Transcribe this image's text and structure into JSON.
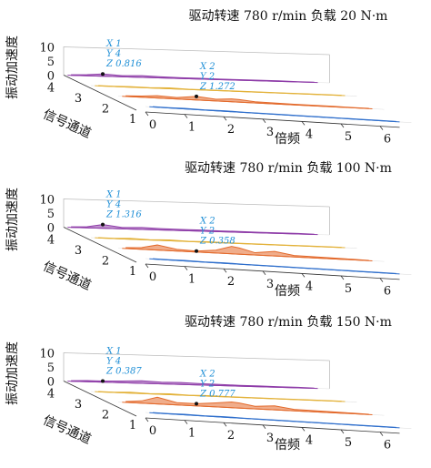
{
  "colors": {
    "channel_1": "#2f6fcc",
    "channel_2": "#e36a2c",
    "channel_3": "#e3b23a",
    "channel_4": "#8e3ca8",
    "annotation": "#1f8fd6",
    "box": "#bdbdbd"
  },
  "chart_data": [
    {
      "type": "line",
      "title": "驱动转速 780 r/min  负载 20 N·m",
      "xlabel": "倍频",
      "ylabel": "信号通道",
      "zlabel": "振动加速度",
      "x_ticks": [
        "0",
        "1",
        "2",
        "3",
        "4",
        "5",
        "6"
      ],
      "y_ticks": [
        "1",
        "2",
        "3",
        "4"
      ],
      "z_ticks": [
        "0",
        "5",
        "10"
      ],
      "xlim": [
        0,
        6.5
      ],
      "zlim": [
        0,
        10
      ],
      "series": [
        {
          "channel": 1,
          "x": [
            0.2,
            0.6,
            1.0,
            1.5,
            2.0,
            2.5,
            3.0,
            3.5,
            4.0,
            4.5,
            5.0,
            5.5,
            6.0,
            6.4
          ],
          "z": [
            0.1,
            0.1,
            0.2,
            0.1,
            0.2,
            0.1,
            0.1,
            0.1,
            0.1,
            0.1,
            0.1,
            0.1,
            0.1,
            0.1
          ]
        },
        {
          "channel": 2,
          "x": [
            0.2,
            0.6,
            1.0,
            1.5,
            2.0,
            2.5,
            2.9,
            3.1,
            3.5,
            4.0,
            4.5,
            5.0,
            5.5,
            6.0,
            6.4
          ],
          "z": [
            0.2,
            0.4,
            0.8,
            0.5,
            1.272,
            0.6,
            1.0,
            0.9,
            0.4,
            0.3,
            0.2,
            0.2,
            0.2,
            0.1,
            0.1
          ]
        },
        {
          "channel": 3,
          "x": [
            0.2,
            0.6,
            1.0,
            1.5,
            2.0,
            2.5,
            3.0,
            3.5,
            4.0,
            4.5,
            5.0,
            5.5,
            6.0,
            6.4
          ],
          "z": [
            0.1,
            0.1,
            0.2,
            0.1,
            0.3,
            0.1,
            0.1,
            0.1,
            0.1,
            0.1,
            0.1,
            0.1,
            0.1,
            0.1
          ]
        },
        {
          "channel": 4,
          "x": [
            0.2,
            0.6,
            1.0,
            1.5,
            2.0,
            2.5,
            3.0,
            3.5,
            4.0,
            4.5,
            5.0,
            5.5,
            6.0,
            6.4
          ],
          "z": [
            0.2,
            0.4,
            0.816,
            0.4,
            0.6,
            0.4,
            0.3,
            0.3,
            0.2,
            0.2,
            0.2,
            0.2,
            0.1,
            0.1
          ]
        }
      ],
      "annotations": [
        {
          "x": 1,
          "y": 4,
          "z": 0.816,
          "labels": [
            "X 1",
            "Y 4",
            "Z 0.816"
          ]
        },
        {
          "x": 2,
          "y": 2,
          "z": 1.272,
          "labels": [
            "X 2",
            "Y 2",
            "Z 1.272"
          ]
        }
      ]
    },
    {
      "type": "line",
      "title": "驱动转速 780 r/min  负载 100 N·m",
      "xlabel": "倍频",
      "ylabel": "信号通道",
      "zlabel": "振动加速度",
      "x_ticks": [
        "0",
        "1",
        "2",
        "3",
        "4",
        "5",
        "6"
      ],
      "y_ticks": [
        "1",
        "2",
        "3",
        "4"
      ],
      "z_ticks": [
        "0",
        "5",
        "10"
      ],
      "xlim": [
        0,
        6.5
      ],
      "zlim": [
        0,
        10
      ],
      "series": [
        {
          "channel": 1,
          "x": [
            0.2,
            0.6,
            1.0,
            1.5,
            2.0,
            2.5,
            3.0,
            3.5,
            4.0,
            4.5,
            5.0,
            5.5,
            6.0,
            6.4
          ],
          "z": [
            0.1,
            0.1,
            0.2,
            0.1,
            0.2,
            0.1,
            0.1,
            0.1,
            0.1,
            0.1,
            0.1,
            0.1,
            0.1,
            0.1
          ]
        },
        {
          "channel": 2,
          "x": [
            0.2,
            0.6,
            1.0,
            1.5,
            2.0,
            2.5,
            2.9,
            3.1,
            3.5,
            4.0,
            4.5,
            5.0,
            5.5,
            6.0,
            6.4
          ],
          "z": [
            0.3,
            0.6,
            1.8,
            0.6,
            0.358,
            1.0,
            2.6,
            2.2,
            0.8,
            1.6,
            0.5,
            0.4,
            0.3,
            0.2,
            0.1
          ]
        },
        {
          "channel": 3,
          "x": [
            0.2,
            0.6,
            1.0,
            1.5,
            2.0,
            2.5,
            3.0,
            3.5,
            4.0,
            4.5,
            5.0,
            5.5,
            6.0,
            6.4
          ],
          "z": [
            0.1,
            0.1,
            0.3,
            0.1,
            0.3,
            0.1,
            0.2,
            0.1,
            0.1,
            0.1,
            0.1,
            0.1,
            0.1,
            0.1
          ]
        },
        {
          "channel": 4,
          "x": [
            0.2,
            0.6,
            1.0,
            1.5,
            2.0,
            2.5,
            3.0,
            3.5,
            4.0,
            4.5,
            5.0,
            5.5,
            6.0,
            6.4
          ],
          "z": [
            0.2,
            0.4,
            1.316,
            0.5,
            0.7,
            0.5,
            0.4,
            0.4,
            0.3,
            0.3,
            0.2,
            0.2,
            0.2,
            0.1
          ]
        }
      ],
      "annotations": [
        {
          "x": 1,
          "y": 4,
          "z": 1.316,
          "labels": [
            "X 1",
            "Y 4",
            "Z 1.316"
          ]
        },
        {
          "x": 2,
          "y": 2,
          "z": 0.358,
          "labels": [
            "X 2",
            "Y 2",
            "Z 0.358"
          ]
        }
      ]
    },
    {
      "type": "line",
      "title": "驱动转速 780 r/min  负载 150 N·m",
      "xlabel": "倍频",
      "ylabel": "信号通道",
      "zlabel": "振动加速度",
      "x_ticks": [
        "0",
        "1",
        "2",
        "3",
        "4",
        "5",
        "6"
      ],
      "y_ticks": [
        "1",
        "2",
        "3",
        "4"
      ],
      "z_ticks": [
        "0",
        "5",
        "10"
      ],
      "xlim": [
        0,
        6.5
      ],
      "zlim": [
        0,
        10
      ],
      "series": [
        {
          "channel": 1,
          "x": [
            0.2,
            0.6,
            1.0,
            1.5,
            2.0,
            2.5,
            3.0,
            3.5,
            4.0,
            4.5,
            5.0,
            5.5,
            6.0,
            6.4
          ],
          "z": [
            0.1,
            0.1,
            0.2,
            0.1,
            0.2,
            0.1,
            0.1,
            0.1,
            0.1,
            0.1,
            0.1,
            0.1,
            0.1,
            0.1
          ]
        },
        {
          "channel": 2,
          "x": [
            0.2,
            0.6,
            1.0,
            1.5,
            2.0,
            2.5,
            2.9,
            3.1,
            3.5,
            4.0,
            4.5,
            5.0,
            5.5,
            6.0,
            6.4
          ],
          "z": [
            0.3,
            0.8,
            2.4,
            0.8,
            0.777,
            1.4,
            2.0,
            1.8,
            0.9,
            1.4,
            0.5,
            0.4,
            0.3,
            0.2,
            0.1
          ]
        },
        {
          "channel": 3,
          "x": [
            0.2,
            0.6,
            1.0,
            1.5,
            2.0,
            2.5,
            3.0,
            3.5,
            4.0,
            4.5,
            5.0,
            5.5,
            6.0,
            6.4
          ],
          "z": [
            0.1,
            0.1,
            0.3,
            0.1,
            0.3,
            0.1,
            0.2,
            0.1,
            0.1,
            0.1,
            0.1,
            0.1,
            0.1,
            0.1
          ]
        },
        {
          "channel": 4,
          "x": [
            0.2,
            0.6,
            1.0,
            1.5,
            2.0,
            2.5,
            3.0,
            3.5,
            4.0,
            4.5,
            5.0,
            5.5,
            6.0,
            6.4
          ],
          "z": [
            0.2,
            0.4,
            0.387,
            0.6,
            0.9,
            0.6,
            0.7,
            0.5,
            0.4,
            0.3,
            0.3,
            0.2,
            0.2,
            0.1
          ]
        }
      ],
      "annotations": [
        {
          "x": 1,
          "y": 4,
          "z": 0.387,
          "labels": [
            "X 1",
            "Y 4",
            "Z 0.387"
          ]
        },
        {
          "x": 2,
          "y": 2,
          "z": 0.777,
          "labels": [
            "X 2",
            "Y 2",
            "Z 0.777"
          ]
        }
      ]
    }
  ]
}
